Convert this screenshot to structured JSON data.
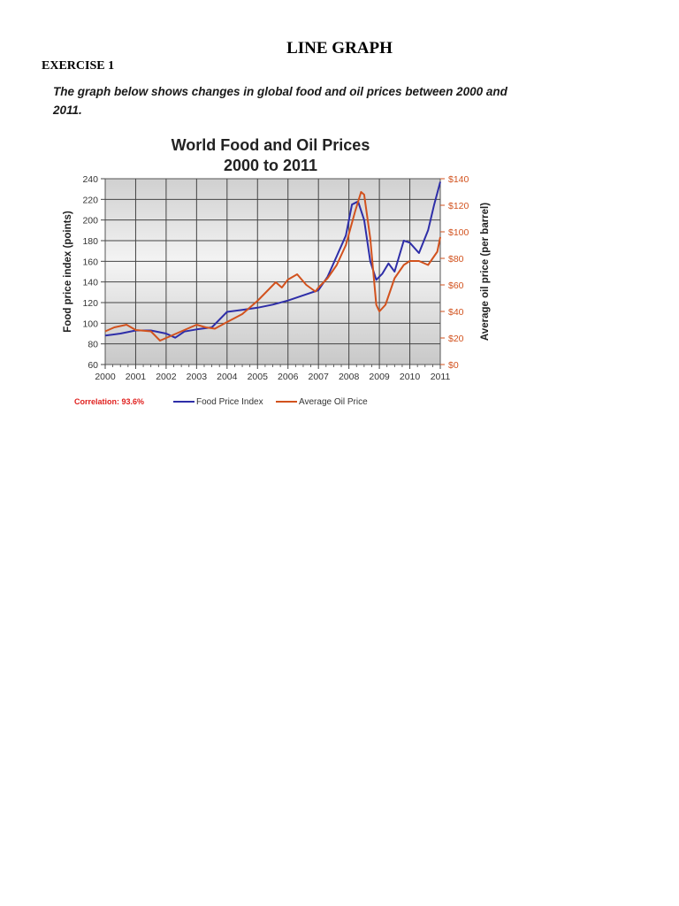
{
  "document": {
    "title": "LINE GRAPH",
    "exercise": "EXERCISE 1",
    "prompt": "The graph below shows changes in global food and oil prices between 2000 and 2011."
  },
  "colors": {
    "food": "#2e2ea8",
    "oil": "#d2521e",
    "correlation": "#e0201e"
  },
  "chart_data": {
    "type": "line",
    "title": "World Food and Oil Prices",
    "subtitle": "2000 to 2011",
    "ylabel_left": "Food price index (points)",
    "ylabel_right": "Average oil price (per barrel)",
    "x_ticks": [
      "2000",
      "2001",
      "2002",
      "2003",
      "2004",
      "2005",
      "2006",
      "2007",
      "2008",
      "2009",
      "2010",
      "2011"
    ],
    "left_ticks": [
      "60",
      "80",
      "100",
      "120",
      "140",
      "160",
      "180",
      "200",
      "220",
      "240"
    ],
    "right_ticks": [
      "$0",
      "$20",
      "$40",
      "$60",
      "$80",
      "$100",
      "$120",
      "$140"
    ],
    "ylim_left": [
      60,
      240
    ],
    "ylim_right": [
      0,
      140
    ],
    "xlim": [
      2000,
      2011
    ],
    "grid": true,
    "annotation": "Correlation: 93.6%",
    "series": [
      {
        "name": "Food Price Index",
        "axis": "left",
        "x": [
          2000,
          2000.5,
          2001,
          2001.5,
          2002,
          2002.3,
          2002.6,
          2003,
          2003.5,
          2004,
          2004.5,
          2005,
          2005.5,
          2006,
          2006.5,
          2007,
          2007.3,
          2007.6,
          2007.9,
          2008.1,
          2008.3,
          2008.5,
          2008.7,
          2008.9,
          2009.1,
          2009.3,
          2009.5,
          2009.8,
          2010,
          2010.3,
          2010.6,
          2010.8,
          2011
        ],
        "values": [
          88,
          90,
          93,
          93,
          90,
          86,
          92,
          94,
          96,
          111,
          113,
          115,
          118,
          122,
          127,
          132,
          145,
          165,
          185,
          215,
          218,
          200,
          160,
          142,
          148,
          158,
          150,
          180,
          178,
          168,
          190,
          215,
          237
        ]
      },
      {
        "name": "Average Oil Price",
        "axis": "right",
        "x": [
          2000,
          2000.3,
          2000.7,
          2001,
          2001.5,
          2001.8,
          2002,
          2002.5,
          2003,
          2003.3,
          2003.6,
          2004,
          2004.5,
          2005,
          2005.3,
          2005.6,
          2005.8,
          2006,
          2006.3,
          2006.6,
          2006.9,
          2007,
          2007.3,
          2007.6,
          2007.9,
          2008.2,
          2008.4,
          2008.5,
          2008.7,
          2008.9,
          2009,
          2009.2,
          2009.5,
          2009.8,
          2010,
          2010.3,
          2010.6,
          2010.9,
          2011
        ],
        "values": [
          25,
          28,
          30,
          26,
          25,
          18,
          20,
          25,
          30,
          28,
          27,
          32,
          38,
          48,
          55,
          62,
          58,
          64,
          68,
          60,
          55,
          58,
          65,
          75,
          90,
          115,
          130,
          128,
          95,
          45,
          40,
          45,
          65,
          75,
          78,
          78,
          75,
          85,
          96
        ]
      }
    ]
  }
}
